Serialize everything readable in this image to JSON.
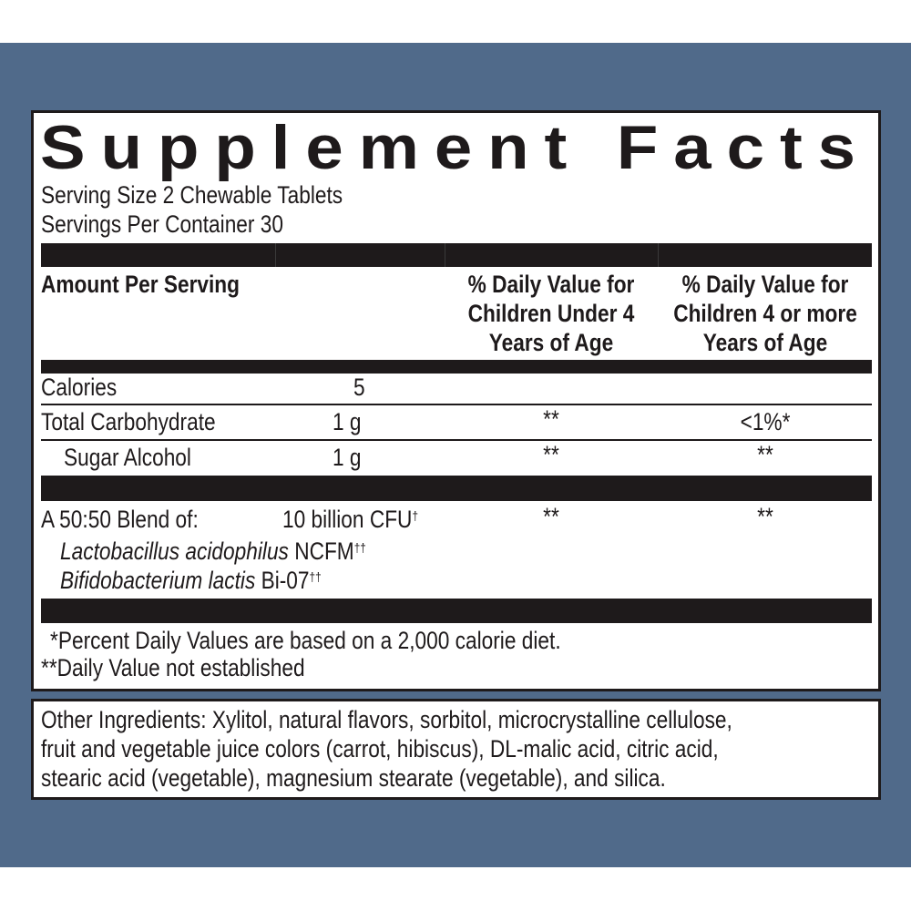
{
  "title": "Supplement Facts",
  "serving_size": "Serving Size 2 Chewable Tablets",
  "servings_per_container": "Servings Per Container 30",
  "header": {
    "amount": "Amount Per Serving",
    "col_under4": [
      "% Daily Value for",
      "Children Under 4",
      "Years of Age"
    ],
    "col_4plus": [
      "% Daily Value for",
      "Children 4 or more",
      "Years of Age"
    ]
  },
  "rows": [
    {
      "name": "Calories",
      "amount": "5",
      "dv_under4": "",
      "dv_4plus": ""
    },
    {
      "name": "Total Carbohydrate",
      "amount": "1 g",
      "dv_under4": "**",
      "dv_4plus": "<1%*"
    },
    {
      "name": "Sugar Alcohol",
      "amount": "1 g",
      "dv_under4": "**",
      "dv_4plus": "**"
    }
  ],
  "blend": {
    "name": "A 50:50 Blend of:",
    "amount": "10 billion CFU",
    "amount_mark": "†",
    "dv_under4": "**",
    "dv_4plus": "**",
    "strains": [
      {
        "species": "Lactobacillus acidophilus",
        "strain": " NCFM",
        "mark": "††"
      },
      {
        "species": "Bifidobacterium lactis",
        "strain": " Bi-07",
        "mark": "††"
      }
    ]
  },
  "footnotes": [
    "*Percent Daily Values are based on a 2,000 calorie diet.",
    "**Daily Value not established"
  ],
  "other_ingredients": [
    "Other Ingredients: Xylitol, natural flavors, sorbitol, microcrystalline cellulose,",
    "fruit and vegetable juice colors (carrot, hibiscus), DL-malic acid, citric acid,",
    "stearic acid (vegetable), magnesium stearate (vegetable), and silica."
  ],
  "colors": {
    "background_band": "#506a8a",
    "ink": "#1e1a1b"
  }
}
